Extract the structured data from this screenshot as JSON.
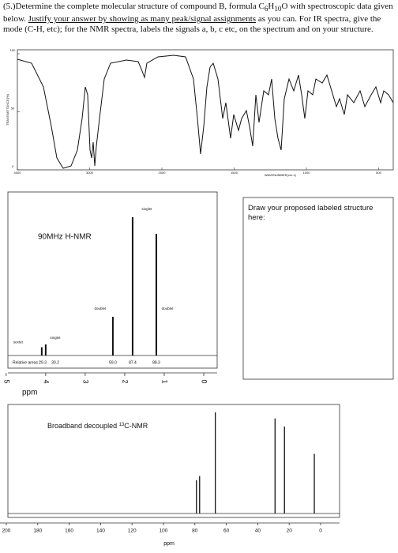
{
  "question": {
    "segments": [
      "(5.)Determine the complete molecular structure of compound  B, formula C",
      "6",
      "H",
      "10",
      "O with spectroscopic data given below.  ",
      "Justify your answer by showing as many peak/signal assignments",
      " as you can.  For IR spectra, give the mode (C-H, etc); for the NMR spectra, labels the signals a, b, c etc, on the spectrum and on your structure."
    ]
  },
  "ir": {
    "y_label": "TRANSMITTANCE(%)",
    "x_label": "WAVENUMBER(cm-1)",
    "xticks": [
      4000,
      3000,
      2000,
      1500,
      1000,
      500
    ],
    "yticks": [
      100,
      50,
      0
    ],
    "ylim": [
      0,
      100
    ]
  },
  "h_nmr": {
    "title": "90MHz H-NMR",
    "xlim": [
      5.3,
      0
    ],
    "xticks": [
      5,
      4,
      3,
      2,
      1,
      0
    ],
    "x_label": "ppm",
    "ylim": [
      0,
      100
    ],
    "peaks": [
      {
        "ppm": 4.1,
        "intensity": 6,
        "label": "sextet"
      },
      {
        "ppm": 4.0,
        "intensity": 8,
        "label": "singlet"
      },
      {
        "ppm": 2.3,
        "intensity": 28,
        "label": "doublet"
      },
      {
        "ppm": 1.8,
        "intensity": 100,
        "label": "singlet"
      },
      {
        "ppm": 1.2,
        "intensity": 88,
        "label": "doublet"
      }
    ],
    "areas_label": "Relative areas :",
    "areas": [
      29.3,
      30.2,
      59.0,
      87.4,
      88.3
    ],
    "area_labels": [
      "29.3",
      "30.2",
      "59.0",
      "87.4",
      "88.3"
    ]
  },
  "answer_box": {
    "text": "Draw your proposed labeled structure here:"
  },
  "c_nmr": {
    "title_pre": "Broadband decoupled ",
    "title_sup": "13",
    "title_post": "C-NMR",
    "xlim": [
      200,
      0
    ],
    "xticks": [
      200,
      180,
      160,
      140,
      120,
      100,
      80,
      60,
      40,
      20,
      0
    ],
    "x_label": "ppm",
    "ylim": [
      0,
      100
    ],
    "peaks": [
      {
        "ppm": 79,
        "intensity": 33
      },
      {
        "ppm": 77,
        "intensity": 37
      },
      {
        "ppm": 67,
        "intensity": 100
      },
      {
        "ppm": 29,
        "intensity": 94
      },
      {
        "ppm": 23,
        "intensity": 86
      },
      {
        "ppm": 4,
        "intensity": 59
      }
    ]
  }
}
